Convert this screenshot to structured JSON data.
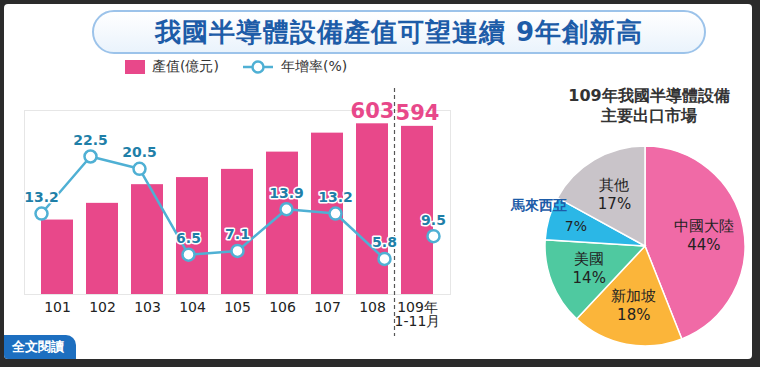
{
  "chart_data": [
    {
      "type": "bar",
      "title": "我國半導體設備產值可望連續 9年創新高",
      "categories": [
        "101",
        "102",
        "103",
        "104",
        "105",
        "106",
        "107",
        "108",
        "109年\n1-11月"
      ],
      "series": [
        {
          "name": "產值(億元)",
          "type": "bar",
          "color": "#e8488a",
          "values": [
            263,
            322,
            388,
            413,
            442,
            503,
            570,
            603,
            594
          ],
          "value_labels": [
            null,
            null,
            null,
            null,
            null,
            null,
            null,
            "603",
            "594"
          ],
          "data_labels": true
        },
        {
          "name": "年增率(%)",
          "type": "line",
          "axis": "y2",
          "color": "#4fb0d4",
          "marker": "circle",
          "values": [
            13.2,
            22.5,
            20.5,
            6.5,
            7.1,
            13.9,
            13.2,
            5.8,
            9.5
          ],
          "data_labels": true
        }
      ],
      "ylim": [
        0,
        650
      ],
      "y2lim": [
        0,
        30
      ],
      "tick_labels": "x",
      "legend": "top",
      "annotations": [
        "全文閱讀"
      ]
    },
    {
      "type": "pie",
      "title": "109年我國半導體設備\n主要出口市場",
      "categories": [
        "中國大陸",
        "新加坡",
        "美國",
        "馬來西亞",
        "其他"
      ],
      "values": [
        44,
        18,
        14,
        7,
        17
      ],
      "value_labels": [
        "44%",
        "18%",
        "14%",
        "7%",
        "17%"
      ],
      "colors": [
        "#f06aa6",
        "#fbb53a",
        "#4fc9a0",
        "#2bb7e6",
        "#c9c4c9"
      ],
      "data_labels": true
    }
  ]
}
